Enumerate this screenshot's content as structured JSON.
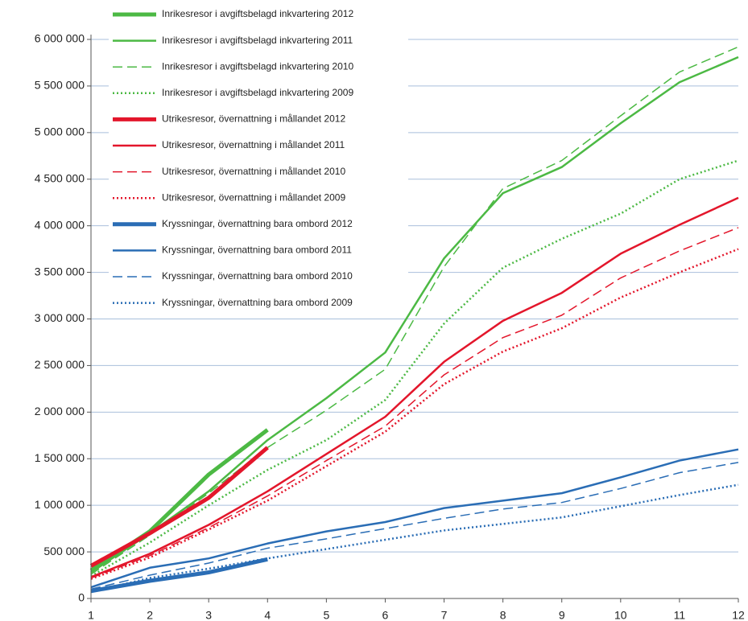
{
  "chart_data": {
    "type": "line",
    "x": [
      1,
      2,
      3,
      4,
      5,
      6,
      7,
      8,
      9,
      10,
      11,
      12
    ],
    "xlim": [
      1,
      12
    ],
    "xticks": [
      1,
      2,
      3,
      4,
      5,
      6,
      7,
      8,
      9,
      10,
      11,
      12
    ],
    "ylim": [
      0,
      6000000
    ],
    "yticks": [
      0,
      {
        "value": 500000,
        "label": "500 000"
      },
      {
        "value": 1000000,
        "label": "1 000 000"
      },
      {
        "value": 1500000,
        "label": "1 500 000"
      },
      {
        "value": 2000000,
        "label": "2 000 000"
      },
      {
        "value": 2500000,
        "label": "2 500 000"
      },
      {
        "value": 3000000,
        "label": "3 000 000"
      },
      {
        "value": 3500000,
        "label": "3 500 000"
      },
      {
        "value": 4000000,
        "label": "4 000 000"
      },
      {
        "value": 4500000,
        "label": "4 500 000"
      },
      {
        "value": 5000000,
        "label": "5 000 000"
      },
      {
        "value": 5500000,
        "label": "5 500 000"
      },
      {
        "value": 6000000,
        "label": "6 000 000"
      }
    ],
    "grid": true,
    "legend": "top-left",
    "series": [
      {
        "name": "Inrikesresor i avgiftsbelagd inkvartering 2012",
        "color": "#4cb944",
        "style": "thick",
        "values": [
          300000,
          720000,
          1330000,
          1810000,
          null,
          null,
          null,
          null,
          null,
          null,
          null,
          null
        ]
      },
      {
        "name": "Inrikesresor i avgiftsbelagd inkvartering 2011",
        "color": "#4cb944",
        "style": "solid",
        "values": [
          280000,
          700000,
          1150000,
          1700000,
          2150000,
          2640000,
          3650000,
          4350000,
          4630000,
          5100000,
          5540000,
          5810000
        ]
      },
      {
        "name": "Inrikesresor i avgiftsbelagd inkvartering 2010",
        "color": "#4cb944",
        "style": "dashed",
        "values": [
          260000,
          680000,
          1130000,
          1620000,
          2020000,
          2460000,
          3560000,
          4400000,
          4700000,
          5180000,
          5650000,
          5920000
        ]
      },
      {
        "name": "Inrikesresor i avgiftsbelagd inkvartering 2009",
        "color": "#4cb944",
        "style": "dotted",
        "values": [
          240000,
          600000,
          1000000,
          1380000,
          1700000,
          2130000,
          2950000,
          3550000,
          3860000,
          4130000,
          4500000,
          4700000
        ]
      },
      {
        "name": "Utrikesresor, övernattning i mållandet 2012",
        "color": "#e3162b",
        "style": "thick",
        "values": [
          350000,
          700000,
          1080000,
          1620000,
          null,
          null,
          null,
          null,
          null,
          null,
          null,
          null
        ]
      },
      {
        "name": "Utrikesresor, övernattning i mållandet 2011",
        "color": "#e3162b",
        "style": "solid",
        "values": [
          230000,
          480000,
          790000,
          1150000,
          1550000,
          1950000,
          2540000,
          2980000,
          3280000,
          3700000,
          4010000,
          4300000
        ]
      },
      {
        "name": "Utrikesresor, övernattning i mållandet 2010",
        "color": "#e3162b",
        "style": "dashed",
        "values": [
          220000,
          460000,
          760000,
          1100000,
          1480000,
          1850000,
          2400000,
          2800000,
          3040000,
          3440000,
          3730000,
          3980000
        ]
      },
      {
        "name": "Utrikesresor, övernattning i mållandet 2009",
        "color": "#e3162b",
        "style": "dotted",
        "values": [
          210000,
          440000,
          740000,
          1050000,
          1420000,
          1790000,
          2300000,
          2650000,
          2900000,
          3230000,
          3500000,
          3750000
        ]
      },
      {
        "name": "Kryssningar, övernattning bara ombord 2012",
        "color": "#2a6db5",
        "style": "thick",
        "values": [
          80000,
          190000,
          280000,
          420000,
          null,
          null,
          null,
          null,
          null,
          null,
          null,
          null
        ]
      },
      {
        "name": "Kryssningar, övernattning bara ombord 2011",
        "color": "#2a6db5",
        "style": "solid",
        "values": [
          120000,
          330000,
          430000,
          590000,
          720000,
          820000,
          970000,
          1050000,
          1130000,
          1300000,
          1480000,
          1600000
        ]
      },
      {
        "name": "Kryssningar, övernattning bara ombord 2010",
        "color": "#2a6db5",
        "style": "dashed",
        "values": [
          100000,
          250000,
          380000,
          540000,
          640000,
          750000,
          860000,
          960000,
          1030000,
          1180000,
          1350000,
          1460000
        ]
      },
      {
        "name": "Kryssningar, övernattning bara ombord 2009",
        "color": "#2a6db5",
        "style": "dotted",
        "values": [
          70000,
          220000,
          320000,
          430000,
          530000,
          630000,
          730000,
          800000,
          870000,
          990000,
          1110000,
          1220000
        ]
      }
    ]
  }
}
